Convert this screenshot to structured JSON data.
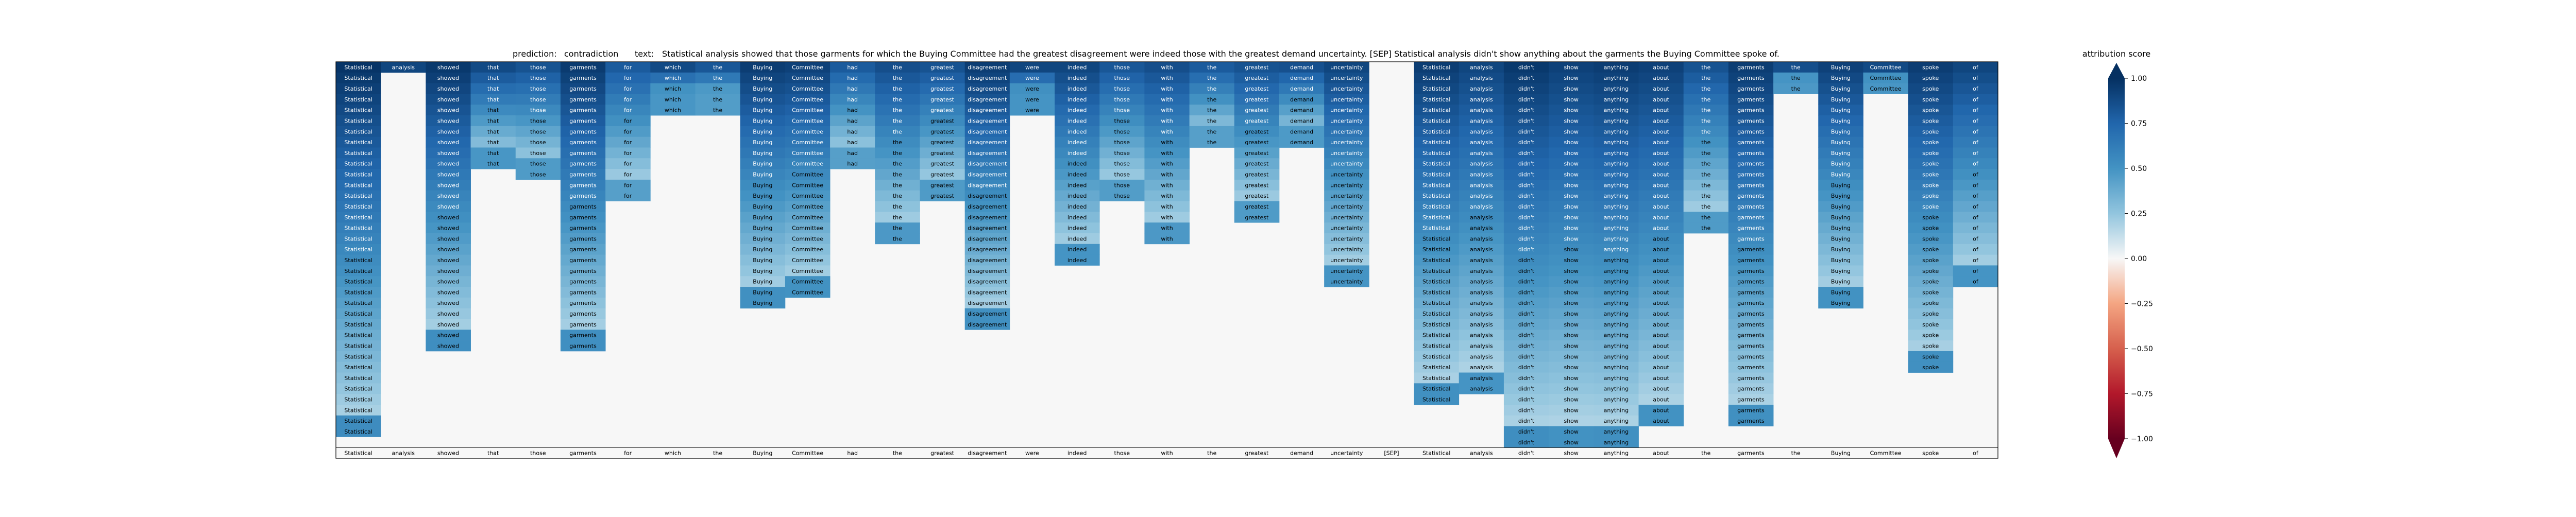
{
  "chart_data": {
    "type": "heatmap",
    "header": {
      "prediction_label": "prediction:",
      "prediction_value": "contradiction",
      "text_label": "text:",
      "text_value": "Statistical analysis showed that those garments for which the Buying Committee had the greatest disagreement were indeed those with the greatest demand uncertainty. [SEP] Statistical analysis didn't show anything about the garments the Buying Committee spoke of."
    },
    "colorbar": {
      "title": "attribution score",
      "range": [
        -1.0,
        1.0
      ],
      "ticks": [
        "1.00",
        "0.75",
        "0.50",
        "0.25",
        "0.00",
        "−0.25",
        "−0.50",
        "−0.75",
        "−1.00"
      ],
      "tick_values": [
        1.0,
        0.75,
        0.5,
        0.25,
        0.0,
        -0.25,
        -0.5,
        -0.75,
        -1.0
      ],
      "colormap": "RdBu"
    },
    "tokens": [
      "Statistical",
      "analysis",
      "showed",
      "that",
      "those",
      "garments",
      "for",
      "which",
      "the",
      "Buying",
      "Committee",
      "had",
      "the",
      "greatest",
      "disagreement",
      "were",
      "indeed",
      "those",
      "with",
      "the",
      "greatest",
      "demand",
      "uncertainty",
      "[SEP]",
      "Statistical",
      "analysis",
      "didn't",
      "show",
      "anything",
      "about",
      "the",
      "garments",
      "the",
      "Buying",
      "Committee",
      "spoke",
      "of"
    ],
    "column_depths": [
      35,
      1,
      27,
      10,
      11,
      27,
      13,
      5,
      5,
      23,
      22,
      10,
      17,
      13,
      25,
      5,
      19,
      13,
      17,
      8,
      15,
      8,
      21,
      0,
      32,
      31,
      36,
      36,
      36,
      34,
      16,
      34,
      3,
      23,
      3,
      29,
      21
    ],
    "column_base": [
      0.98,
      0.9,
      0.96,
      0.88,
      0.84,
      0.95,
      0.8,
      0.88,
      0.82,
      0.94,
      0.92,
      0.8,
      0.86,
      0.84,
      0.94,
      0.9,
      0.9,
      0.82,
      0.86,
      0.8,
      0.84,
      0.85,
      0.9,
      0.0,
      0.94,
      0.9,
      0.96,
      0.92,
      0.94,
      0.92,
      0.84,
      0.94,
      0.86,
      0.92,
      0.88,
      0.94,
      0.9
    ],
    "rows": 36
  }
}
